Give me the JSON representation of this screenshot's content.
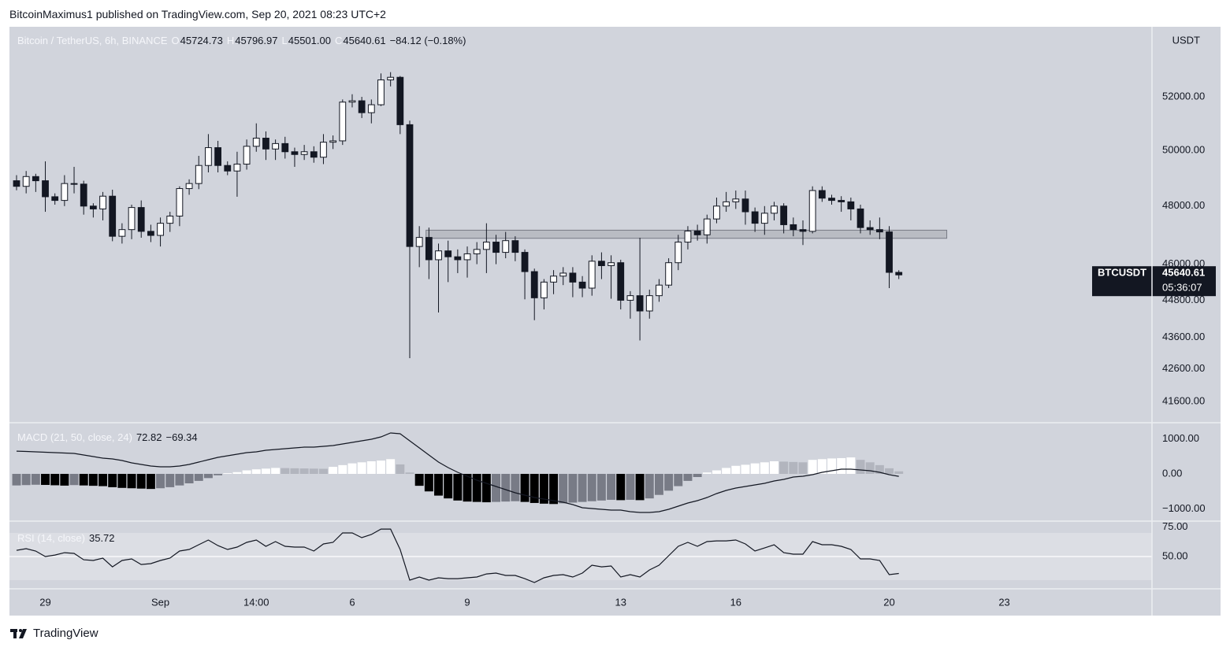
{
  "header": {
    "byline": "BitcoinMaximus1 published on TradingView.com, Sep 20, 2021 08:23 UTC+2",
    "footer": "TradingView"
  },
  "chart_data": [
    {
      "type": "candlestick",
      "title": "Bitcoin / TetherUS, 6h, BINANCE",
      "unit": "USDT",
      "legend": [
        {
          "key": "O",
          "value": 45724.73,
          "label": "45724.73"
        },
        {
          "key": "H",
          "value": 45796.97,
          "label": "45796.97"
        },
        {
          "key": "L",
          "value": 45501.0,
          "label": "45501.00"
        },
        {
          "key": "C",
          "value": 45640.61,
          "label": "45640.61"
        }
      ],
      "change": {
        "value": -84.12,
        "label": "−84.12 (−0.18%)"
      },
      "last": {
        "symbol": "BTCUSDT",
        "value": 45640.61,
        "label": "45640.61",
        "countdown": "05:36:07"
      },
      "log_scale": true,
      "grid": false,
      "up_color": "#ffffff",
      "down_color": "#131722",
      "ylim": [
        40955,
        54740
      ],
      "yticks": [
        {
          "value": 52000,
          "label": "52000.00"
        },
        {
          "value": 50000,
          "label": "50000.00"
        },
        {
          "value": 48000,
          "label": "48000.00"
        },
        {
          "value": 46000,
          "label": "46000.00"
        },
        {
          "value": 44800,
          "label": "44800.00"
        },
        {
          "value": 43600,
          "label": "43600.00"
        },
        {
          "value": 42600,
          "label": "42600.00"
        },
        {
          "value": 41600,
          "label": "41600.00"
        }
      ],
      "xlim": [
        -0.74,
        118.4
      ],
      "xticks": [
        {
          "value": 3,
          "label": "29"
        },
        {
          "value": 15,
          "label": "Sep"
        },
        {
          "value": 25,
          "label": "14:00"
        },
        {
          "value": 35,
          "label": "6"
        },
        {
          "value": 47,
          "label": "9"
        },
        {
          "value": 63,
          "label": "13"
        },
        {
          "value": 75,
          "label": "16"
        },
        {
          "value": 91,
          "label": "20"
        },
        {
          "value": 103,
          "label": "23"
        }
      ],
      "zone": {
        "from": 42.7,
        "to": 97.0,
        "high": 47160,
        "low": 46880
      },
      "open": [
        48900,
        48700,
        49050,
        48900,
        48330,
        48200,
        48800,
        48780,
        48000,
        47900,
        48350,
        46950,
        47180,
        47950,
        47120,
        46980,
        47400,
        47650,
        48620,
        48800,
        49450,
        50100,
        49450,
        49250,
        49500,
        50150,
        50450,
        50050,
        50250,
        49950,
        49850,
        49950,
        49750,
        50300,
        50350,
        51800,
        51850,
        51400,
        51700,
        52650,
        52750,
        50950,
        46600,
        46910,
        46150,
        46450,
        46250,
        46150,
        46350,
        46500,
        46750,
        46400,
        46800,
        46400,
        45750,
        44880,
        45400,
        45600,
        45700,
        45400,
        45200,
        46100,
        45950,
        46050,
        44800,
        44950,
        44450,
        44950,
        45300,
        46050,
        46750,
        47130,
        47000,
        47550,
        48000,
        48150,
        48250,
        47800,
        47400,
        47750,
        48000,
        47350,
        47180,
        47120,
        48550,
        48280,
        48200,
        48150,
        47900,
        47250,
        47180,
        47100,
        45724.73
      ],
      "high": [
        49100,
        49250,
        49150,
        49600,
        48450,
        49100,
        49400,
        48900,
        48100,
        48500,
        48580,
        47400,
        48050,
        48200,
        47350,
        47600,
        47800,
        48700,
        48950,
        49800,
        50600,
        50350,
        49600,
        49950,
        50400,
        51000,
        50700,
        50400,
        50500,
        50100,
        50200,
        50150,
        50600,
        50550,
        51900,
        52100,
        52000,
        51900,
        52900,
        52950,
        52800,
        51100,
        47300,
        47250,
        46700,
        46800,
        46500,
        46600,
        46750,
        47400,
        47000,
        47100,
        46950,
        46500,
        45850,
        45500,
        45800,
        45900,
        45900,
        45600,
        46300,
        46400,
        46300,
        46150,
        45100,
        46900,
        45150,
        45500,
        46200,
        47000,
        47300,
        47350,
        47700,
        48300,
        48500,
        48550,
        48550,
        47950,
        48000,
        48150,
        48100,
        47600,
        47500,
        48700,
        48700,
        48400,
        48350,
        48300,
        48050,
        47500,
        47600,
        47300,
        45796.97
      ],
      "low": [
        48560,
        48450,
        48500,
        47800,
        48050,
        48000,
        48450,
        47700,
        47600,
        47500,
        46780,
        46700,
        46850,
        46900,
        46750,
        46600,
        47100,
        47300,
        48400,
        48600,
        49200,
        49200,
        49100,
        48330,
        49300,
        49950,
        49650,
        49650,
        49700,
        49400,
        49650,
        49550,
        49500,
        50050,
        50200,
        51600,
        51200,
        51000,
        51650,
        52400,
        50600,
        42940,
        45900,
        45500,
        44400,
        45400,
        45700,
        45550,
        46000,
        45700,
        46000,
        46200,
        46100,
        44830,
        44150,
        44500,
        45000,
        45300,
        44900,
        44900,
        44950,
        45500,
        44850,
        44500,
        44200,
        43500,
        44200,
        44750,
        45200,
        45800,
        46500,
        46800,
        46700,
        47400,
        47800,
        47900,
        47350,
        47100,
        47000,
        47500,
        47050,
        46950,
        46650,
        47050,
        48150,
        48050,
        47800,
        47500,
        47050,
        47000,
        46850,
        45200,
        45501.0
      ],
      "close": [
        48700,
        49050,
        48900,
        48330,
        48200,
        48800,
        48780,
        48000,
        47900,
        48350,
        46950,
        47180,
        47950,
        47120,
        46980,
        47400,
        47650,
        48620,
        48800,
        49450,
        50100,
        49450,
        49250,
        49500,
        50150,
        50450,
        50050,
        50250,
        49950,
        49850,
        49950,
        49750,
        50300,
        50350,
        51800,
        51850,
        51400,
        51700,
        52650,
        52750,
        50950,
        46600,
        46910,
        46150,
        46450,
        46250,
        46150,
        46350,
        46500,
        46750,
        46400,
        46800,
        46400,
        45750,
        44880,
        45400,
        45600,
        45700,
        45400,
        45200,
        46100,
        45950,
        46050,
        44800,
        44950,
        44450,
        44950,
        45300,
        46050,
        46750,
        47130,
        47000,
        47550,
        48000,
        48150,
        48250,
        47800,
        47400,
        47750,
        48000,
        47350,
        47180,
        47120,
        48550,
        48280,
        48200,
        48150,
        47900,
        47250,
        47180,
        47100,
        45724.73,
        45640.61
      ]
    },
    {
      "type": "macd",
      "title": "MACD (21, 50, close, 24)",
      "legend": [
        {
          "value": 72.82,
          "label": "72.82"
        },
        {
          "value": -69.34,
          "label": "−69.34"
        }
      ],
      "ylim": [
        -1348,
        1460
      ],
      "yticks": [
        {
          "value": 1000,
          "label": "1000.00"
        },
        {
          "value": 0,
          "label": "0.00"
        },
        {
          "value": -1000,
          "label": "−1000.00"
        }
      ],
      "histogram": {
        "colors": {
          "rising_above": "#ffffff",
          "falling_above": "#b2b5be",
          "rising_below": "#787b86",
          "falling_below": "#000000"
        },
        "values": [
          -330,
          -320,
          -310,
          -315,
          -325,
          -335,
          -320,
          -330,
          -340,
          -350,
          -380,
          -400,
          -410,
          -420,
          -430,
          -410,
          -380,
          -330,
          -270,
          -200,
          -120,
          -40,
          20,
          50,
          100,
          130,
          150,
          170,
          165,
          160,
          155,
          150,
          145,
          200,
          250,
          300,
          330,
          360,
          380,
          420,
          270,
          40,
          -340,
          -500,
          -620,
          -700,
          -760,
          -790,
          -800,
          -810,
          -800,
          -790,
          -780,
          -800,
          -830,
          -850,
          -860,
          -840,
          -820,
          -800,
          -780,
          -760,
          -740,
          -750,
          -740,
          -750,
          -700,
          -600,
          -480,
          -350,
          -200,
          -90,
          40,
          100,
          170,
          230,
          260,
          300,
          330,
          360,
          350,
          340,
          330,
          400,
          420,
          440,
          450,
          470,
          400,
          330,
          250,
          160,
          72.82
        ]
      },
      "line": {
        "color": "#131722",
        "values": [
          650,
          640,
          629,
          618,
          607,
          596,
          584,
          539,
          494,
          449,
          427,
          382,
          315,
          270,
          225,
          202,
          202,
          225,
          270,
          337,
          404,
          472,
          517,
          562,
          607,
          629,
          674,
          697,
          719,
          742,
          764,
          764,
          787,
          809,
          854,
          899,
          944,
          989,
          1056,
          1169,
          1146,
          944,
          742,
          539,
          337,
          180,
          45,
          -67,
          -180,
          -270,
          -360,
          -449,
          -539,
          -607,
          -674,
          -719,
          -764,
          -809,
          -876,
          -966,
          -989,
          -1011,
          -1034,
          -1034,
          -1079,
          -1101,
          -1101,
          -1079,
          -1011,
          -921,
          -831,
          -764,
          -674,
          -562,
          -472,
          -404,
          -360,
          -315,
          -270,
          -202,
          -157,
          -90,
          -67,
          -22,
          45,
          90,
          135,
          135,
          112,
          90,
          45,
          -22,
          -69.34
        ]
      }
    },
    {
      "type": "rsi",
      "title": "RSI (14, close)",
      "legend": [
        {
          "value": 35.72,
          "label": "35.72"
        }
      ],
      "ylim": [
        22.7,
        80
      ],
      "yticks": [
        {
          "value": 75,
          "label": "75.00"
        },
        {
          "value": 50,
          "label": "50.00"
        }
      ],
      "band": [
        30,
        70
      ],
      "band_color": "#dcdee4",
      "hline": 50,
      "color": "#131722",
      "values": [
        55.3,
        56.7,
        54.7,
        50,
        51.3,
        53.3,
        52.7,
        47.3,
        46.7,
        48.7,
        41.3,
        46.7,
        48,
        43.3,
        44,
        46.7,
        48.7,
        54.7,
        56,
        60,
        64,
        59.3,
        56,
        58,
        62,
        64,
        58.7,
        62.7,
        58.7,
        58,
        58,
        54.7,
        60.7,
        62,
        70,
        70,
        66,
        68.7,
        73.3,
        73.3,
        56,
        30,
        32.7,
        30,
        32,
        31.3,
        31.3,
        32,
        32.7,
        35.3,
        36,
        34,
        34,
        31.3,
        28,
        32,
        34,
        34.7,
        32.7,
        36,
        42.7,
        41.3,
        42,
        32.7,
        34.7,
        32.7,
        38.7,
        42.7,
        50.7,
        58.7,
        62,
        58.7,
        62.7,
        63.3,
        63.3,
        64,
        60.7,
        54.7,
        57.3,
        60,
        53.3,
        52,
        52,
        62.7,
        60,
        60,
        58.7,
        56,
        48,
        48,
        46.7,
        34.7,
        35.72
      ]
    }
  ]
}
